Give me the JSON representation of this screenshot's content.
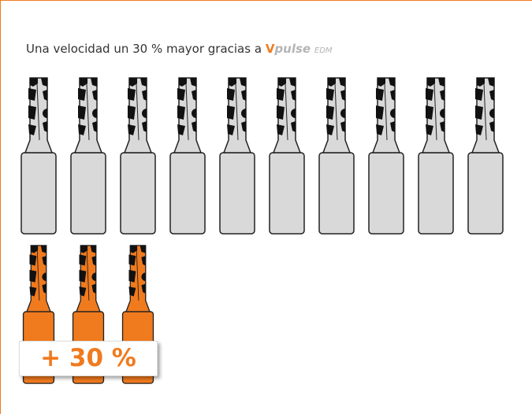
{
  "title": {
    "text": "Una velocidad un 30 % mayor gracias a",
    "brand_v": "V",
    "brand_pulse": "pulse",
    "brand_edm": "EDM"
  },
  "badge": "+ 30 %"
}
